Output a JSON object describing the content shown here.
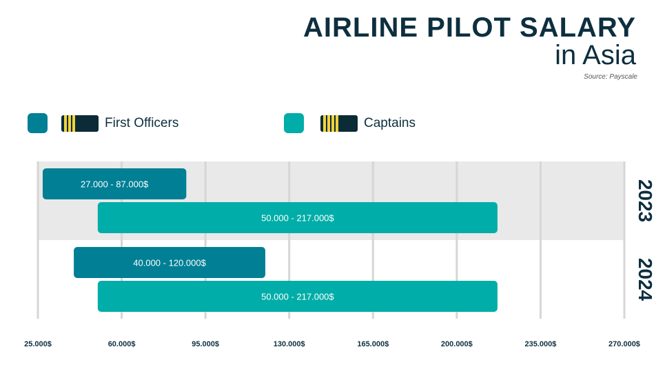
{
  "header": {
    "title": "AIRLINE PILOT SALARY",
    "subtitle": "in Asia",
    "source": "Source: Payscale"
  },
  "legend": {
    "first_officers": "First Officers",
    "captains": "Captains"
  },
  "colors": {
    "first_officers": "#007f95",
    "captains": "#00ada8",
    "band": "#e9e9e9",
    "grid": "#d6d6d6",
    "insignia": "#0b2b36",
    "stripe": "#f2d33f"
  },
  "chart_data": {
    "type": "bar",
    "orientation": "horizontal-range",
    "title": "AIRLINE PILOT SALARY",
    "subtitle": "in Asia",
    "categories": [
      "2023",
      "2024"
    ],
    "series": [
      {
        "name": "First Officers",
        "ranges": [
          [
            27000,
            87000
          ],
          [
            40000,
            120000
          ]
        ],
        "labels": [
          "27.000 - 87.000$",
          "40.000 - 120.000$"
        ]
      },
      {
        "name": "Captains",
        "ranges": [
          [
            50000,
            217000
          ],
          [
            50000,
            217000
          ]
        ],
        "labels": [
          "50.000 - 217.000$",
          "50.000 - 217.000$"
        ]
      }
    ],
    "xlim": [
      25000,
      270000
    ],
    "xticks": [
      25000,
      60000,
      95000,
      130000,
      165000,
      200000,
      235000,
      270000
    ],
    "xtick_labels": [
      "25.000$",
      "60.000$",
      "95.000$",
      "130.000$",
      "165.000$",
      "200.000$",
      "235.000$",
      "270.000$"
    ],
    "grid": true,
    "legend_position": "top-left"
  }
}
